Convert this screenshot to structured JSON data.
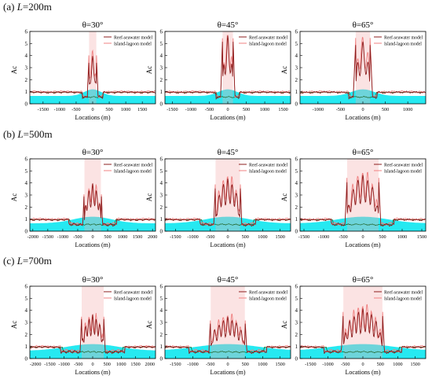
{
  "sections": [
    {
      "tag": "(a)",
      "L_value": "=200m"
    },
    {
      "tag": "(b)",
      "L_value": "=500m"
    },
    {
      "tag": "(c)",
      "L_value": "=700m"
    }
  ],
  "colors": {
    "reef": "#8c1c1c",
    "island": "#f08080",
    "cyan": "#00e5ee",
    "green": "#1f5f1f"
  },
  "chart_data": [
    {
      "type": "line",
      "row": 0,
      "col": 0,
      "title": "θ=30°",
      "L": 200,
      "theta": 30,
      "xlabel": "Locations (m)",
      "ylabel": "Ac",
      "xlim": [
        -1900,
        1900
      ],
      "ylim": [
        0,
        6
      ],
      "xticks": [
        -1500,
        -1000,
        -500,
        0,
        500,
        1000,
        1500
      ],
      "yticks": [
        0,
        1,
        2,
        3,
        4,
        5,
        6
      ],
      "series": [
        {
          "name": "Reef-seawater model"
        },
        {
          "name": "Island-lagoon model"
        }
      ]
    },
    {
      "type": "line",
      "row": 0,
      "col": 1,
      "title": "θ=45°",
      "L": 200,
      "theta": 45,
      "xlabel": "Locations (m)",
      "ylabel": "Ac",
      "xlim": [
        -1700,
        1700
      ],
      "ylim": [
        0,
        6
      ],
      "xticks": [
        -1500,
        -1000,
        -500,
        0,
        500,
        1000,
        1500
      ],
      "yticks": [
        0,
        1,
        2,
        3,
        4,
        5,
        6
      ],
      "series": [
        {
          "name": "Reef-seawater model"
        },
        {
          "name": "Island-lagoon model"
        }
      ]
    },
    {
      "type": "line",
      "row": 0,
      "col": 2,
      "title": "θ=65°",
      "L": 200,
      "theta": 65,
      "xlabel": "Locations (m)",
      "ylabel": "Ac",
      "xlim": [
        -1400,
        1400
      ],
      "ylim": [
        0,
        6
      ],
      "xticks": [
        -1000,
        -500,
        0,
        500,
        1000
      ],
      "yticks": [
        0,
        1,
        2,
        3,
        4,
        5,
        6
      ],
      "series": [
        {
          "name": "Reef-seawater model"
        },
        {
          "name": "Island-lagoon model"
        }
      ]
    },
    {
      "type": "line",
      "row": 1,
      "col": 0,
      "title": "θ=30°",
      "L": 500,
      "theta": 30,
      "xlabel": "Locations (m)",
      "ylabel": "Ac",
      "xlim": [
        -2100,
        2100
      ],
      "ylim": [
        0,
        6
      ],
      "xticks": [
        -2000,
        -1500,
        -1000,
        -500,
        0,
        500,
        1000,
        1500,
        2000
      ],
      "yticks": [
        0,
        1,
        2,
        3,
        4,
        5,
        6
      ],
      "series": [
        {
          "name": "Reef-seawater model"
        },
        {
          "name": "Island-lagoon model"
        }
      ]
    },
    {
      "type": "line",
      "row": 1,
      "col": 1,
      "title": "θ=45°",
      "L": 500,
      "theta": 45,
      "xlabel": "Locations (m)",
      "ylabel": "Ac",
      "xlim": [
        -1800,
        1800
      ],
      "ylim": [
        0,
        6
      ],
      "xticks": [
        -1500,
        -1000,
        -500,
        0,
        500,
        1000,
        1500
      ],
      "yticks": [
        0,
        1,
        2,
        3,
        4,
        5,
        6
      ],
      "series": [
        {
          "name": "Reef-seawater model"
        },
        {
          "name": "Island-lagoon model"
        }
      ]
    },
    {
      "type": "line",
      "row": 1,
      "col": 2,
      "title": "θ=65°",
      "L": 500,
      "theta": 65,
      "xlabel": "Locations (m)",
      "ylabel": "Ac",
      "xlim": [
        -1600,
        1600
      ],
      "ylim": [
        0,
        6
      ],
      "xticks": [
        -1500,
        -1000,
        -500,
        0,
        500,
        1000,
        1500
      ],
      "yticks": [
        0,
        1,
        2,
        3,
        4,
        5,
        6
      ],
      "series": [
        {
          "name": "Reef-seawater model"
        },
        {
          "name": "Island-lagoon model"
        }
      ]
    },
    {
      "type": "line",
      "row": 2,
      "col": 0,
      "title": "θ=30°",
      "L": 700,
      "theta": 30,
      "xlabel": "Locations (m)",
      "ylabel": "Ac",
      "xlim": [
        -2200,
        2200
      ],
      "ylim": [
        0,
        6
      ],
      "xticks": [
        -2000,
        -1500,
        -1000,
        -500,
        0,
        500,
        1000,
        1500,
        2000
      ],
      "yticks": [
        0,
        1,
        2,
        3,
        4,
        5,
        6
      ],
      "series": [
        {
          "name": "Reef-seawater model"
        },
        {
          "name": "Island-lagoon model"
        }
      ]
    },
    {
      "type": "line",
      "row": 2,
      "col": 1,
      "title": "θ=45°",
      "L": 700,
      "theta": 45,
      "xlabel": "Locations (m)",
      "ylabel": "Ac",
      "xlim": [
        -1800,
        1800
      ],
      "ylim": [
        0,
        6
      ],
      "xticks": [
        -1500,
        -1000,
        -500,
        0,
        500,
        1000,
        1500
      ],
      "yticks": [
        0,
        1,
        2,
        3,
        4,
        5,
        6
      ],
      "series": [
        {
          "name": "Reef-seawater model"
        },
        {
          "name": "Island-lagoon model"
        }
      ]
    },
    {
      "type": "line",
      "row": 2,
      "col": 2,
      "title": "θ=65°",
      "L": 700,
      "theta": 65,
      "xlabel": "Locations (m)",
      "ylabel": "Ac",
      "xlim": [
        -1800,
        1800
      ],
      "ylim": [
        0,
        6
      ],
      "xticks": [
        -1500,
        -1000,
        -500,
        0,
        500,
        1000,
        1500
      ],
      "yticks": [
        0,
        1,
        2,
        3,
        4,
        5,
        6
      ],
      "series": [
        {
          "name": "Reef-seawater model"
        },
        {
          "name": "Island-lagoon model"
        }
      ]
    }
  ]
}
